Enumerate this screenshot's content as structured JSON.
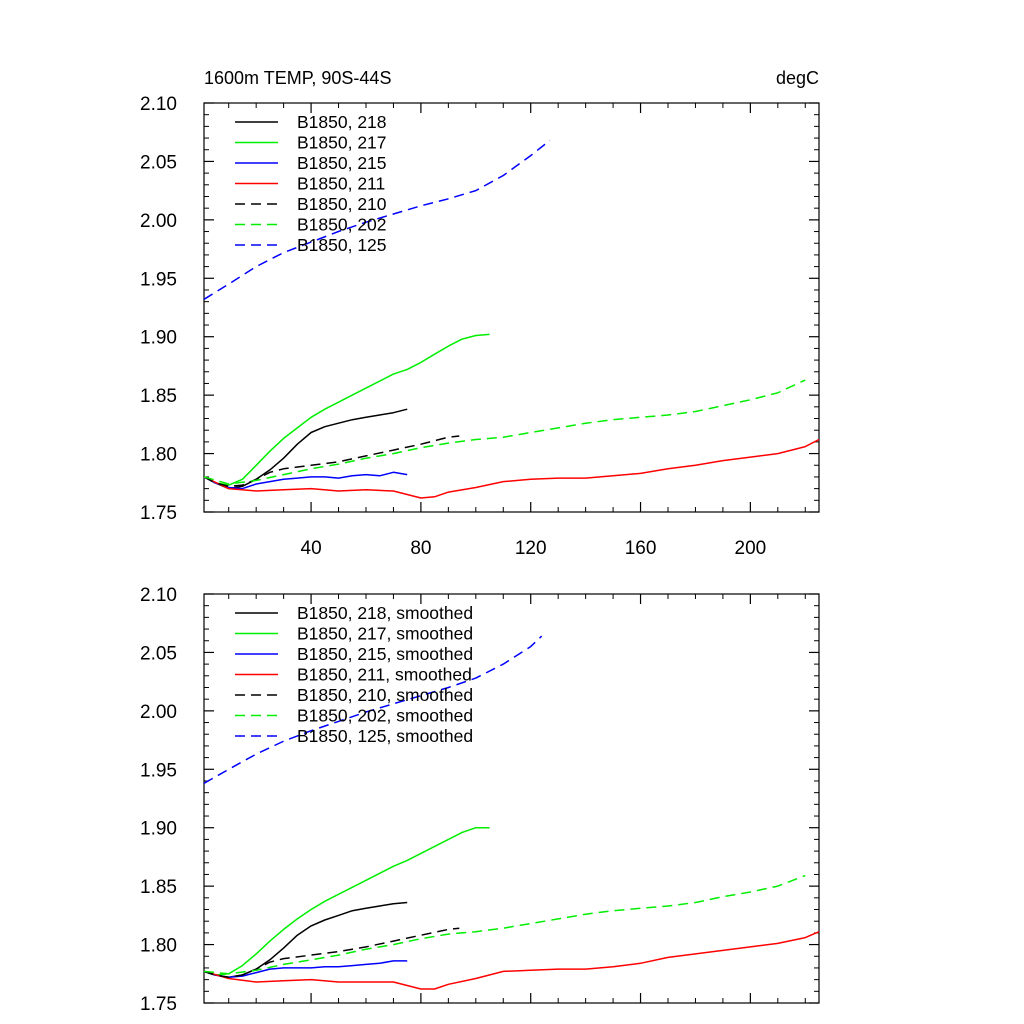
{
  "chart_data": [
    {
      "type": "line",
      "title_left": "1600m TEMP, 90S-44S",
      "title_right": "degC",
      "xlim": [
        1,
        225
      ],
      "ylim": [
        1.75,
        2.1
      ],
      "xticks": [
        40,
        80,
        120,
        160,
        200
      ],
      "yticks": [
        1.75,
        1.8,
        1.85,
        1.9,
        1.95,
        2.0,
        2.05,
        2.1
      ],
      "ytick_labels": [
        "1.75",
        "1.80",
        "1.85",
        "1.90",
        "1.95",
        "2.00",
        "2.05",
        "2.10"
      ],
      "xtick_labels": [
        "40",
        "80",
        "120",
        "160",
        "200"
      ],
      "legend_position": "top-left",
      "series": [
        {
          "name": "B1850, 218",
          "color": "#000000",
          "dash": "solid",
          "x": [
            1,
            5,
            10,
            15,
            20,
            25,
            30,
            35,
            40,
            45,
            50,
            55,
            60,
            65,
            70,
            75
          ],
          "y": [
            1.78,
            1.775,
            1.77,
            1.772,
            1.778,
            1.786,
            1.796,
            1.808,
            1.818,
            1.823,
            1.826,
            1.829,
            1.831,
            1.833,
            1.835,
            1.838
          ]
        },
        {
          "name": "B1850, 217",
          "color": "#00ee00",
          "dash": "solid",
          "x": [
            1,
            5,
            10,
            15,
            20,
            25,
            30,
            35,
            40,
            45,
            50,
            55,
            60,
            65,
            70,
            75,
            80,
            85,
            90,
            95,
            100,
            105
          ],
          "y": [
            1.78,
            1.775,
            1.773,
            1.778,
            1.79,
            1.802,
            1.813,
            1.822,
            1.831,
            1.838,
            1.844,
            1.85,
            1.856,
            1.862,
            1.868,
            1.872,
            1.878,
            1.885,
            1.892,
            1.898,
            1.901,
            1.902
          ]
        },
        {
          "name": "B1850, 215",
          "color": "#0000ff",
          "dash": "solid",
          "x": [
            1,
            5,
            10,
            15,
            20,
            25,
            30,
            35,
            40,
            45,
            50,
            55,
            60,
            65,
            70,
            75
          ],
          "y": [
            1.78,
            1.775,
            1.771,
            1.77,
            1.774,
            1.776,
            1.778,
            1.779,
            1.78,
            1.78,
            1.779,
            1.781,
            1.782,
            1.781,
            1.784,
            1.782
          ]
        },
        {
          "name": "B1850, 211",
          "color": "#ff0000",
          "dash": "solid",
          "x": [
            1,
            10,
            20,
            30,
            40,
            50,
            60,
            70,
            80,
            85,
            90,
            100,
            110,
            120,
            130,
            140,
            150,
            160,
            170,
            180,
            190,
            200,
            210,
            220,
            225
          ],
          "y": [
            1.78,
            1.77,
            1.768,
            1.769,
            1.77,
            1.768,
            1.769,
            1.768,
            1.762,
            1.763,
            1.767,
            1.771,
            1.776,
            1.778,
            1.779,
            1.779,
            1.781,
            1.783,
            1.787,
            1.79,
            1.794,
            1.797,
            1.8,
            1.806,
            1.812
          ]
        },
        {
          "name": "B1850, 210",
          "color": "#000000",
          "dash": "dashed",
          "x": [
            1,
            5,
            10,
            15,
            20,
            25,
            30,
            40,
            50,
            60,
            70,
            80,
            90,
            94
          ],
          "y": [
            1.78,
            1.775,
            1.772,
            1.773,
            1.778,
            1.784,
            1.787,
            1.79,
            1.793,
            1.798,
            1.803,
            1.808,
            1.814,
            1.815
          ]
        },
        {
          "name": "B1850, 202",
          "color": "#00ee00",
          "dash": "dashed",
          "x": [
            1,
            10,
            20,
            30,
            40,
            50,
            60,
            70,
            80,
            90,
            100,
            110,
            120,
            130,
            140,
            150,
            160,
            170,
            180,
            190,
            200,
            210,
            220
          ],
          "y": [
            1.78,
            1.774,
            1.777,
            1.782,
            1.787,
            1.791,
            1.796,
            1.8,
            1.805,
            1.809,
            1.812,
            1.814,
            1.818,
            1.822,
            1.826,
            1.829,
            1.831,
            1.833,
            1.836,
            1.841,
            1.846,
            1.852,
            1.863
          ]
        },
        {
          "name": "B1850, 125",
          "color": "#0000ff",
          "dash": "dashed",
          "x": [
            1,
            10,
            20,
            30,
            40,
            50,
            60,
            70,
            80,
            90,
            100,
            110,
            120,
            127
          ],
          "y": [
            1.932,
            1.945,
            1.96,
            1.972,
            1.981,
            1.99,
            1.998,
            2.005,
            2.012,
            2.018,
            2.025,
            2.038,
            2.055,
            2.068
          ]
        }
      ]
    },
    {
      "type": "line",
      "xlim": [
        1,
        225
      ],
      "ylim": [
        1.75,
        2.1
      ],
      "xticks": [
        40,
        80,
        120,
        160,
        200
      ],
      "yticks": [
        1.75,
        1.8,
        1.85,
        1.9,
        1.95,
        2.0,
        2.05,
        2.1
      ],
      "ytick_labels": [
        "1.75",
        "1.80",
        "1.85",
        "1.90",
        "1.95",
        "2.00",
        "2.05",
        "2.10"
      ],
      "legend_position": "top-left",
      "series": [
        {
          "name": "B1850, 218, smoothed",
          "color": "#000000",
          "dash": "solid",
          "x": [
            1,
            5,
            10,
            15,
            20,
            25,
            30,
            35,
            40,
            45,
            50,
            55,
            60,
            65,
            70,
            75
          ],
          "y": [
            1.777,
            1.774,
            1.772,
            1.774,
            1.779,
            1.787,
            1.797,
            1.808,
            1.816,
            1.821,
            1.825,
            1.829,
            1.831,
            1.833,
            1.835,
            1.836
          ]
        },
        {
          "name": "B1850, 217, smoothed",
          "color": "#00ee00",
          "dash": "solid",
          "x": [
            1,
            5,
            10,
            15,
            20,
            25,
            30,
            35,
            40,
            45,
            50,
            55,
            60,
            65,
            70,
            75,
            80,
            85,
            90,
            95,
            100,
            105
          ],
          "y": [
            1.777,
            1.774,
            1.775,
            1.782,
            1.792,
            1.803,
            1.813,
            1.822,
            1.83,
            1.837,
            1.843,
            1.849,
            1.855,
            1.861,
            1.867,
            1.872,
            1.878,
            1.884,
            1.89,
            1.896,
            1.9,
            1.9
          ]
        },
        {
          "name": "B1850, 215, smoothed",
          "color": "#0000ff",
          "dash": "solid",
          "x": [
            1,
            5,
            10,
            15,
            20,
            25,
            30,
            35,
            40,
            45,
            50,
            55,
            60,
            65,
            70,
            75
          ],
          "y": [
            1.777,
            1.774,
            1.772,
            1.773,
            1.776,
            1.779,
            1.78,
            1.78,
            1.78,
            1.781,
            1.781,
            1.782,
            1.783,
            1.784,
            1.786,
            1.786
          ]
        },
        {
          "name": "B1850, 211, smoothed",
          "color": "#ff0000",
          "dash": "solid",
          "x": [
            1,
            10,
            20,
            30,
            40,
            50,
            60,
            70,
            80,
            85,
            90,
            100,
            110,
            120,
            130,
            140,
            150,
            160,
            170,
            180,
            190,
            200,
            210,
            220,
            225
          ],
          "y": [
            1.777,
            1.771,
            1.768,
            1.769,
            1.77,
            1.768,
            1.768,
            1.768,
            1.762,
            1.762,
            1.766,
            1.771,
            1.777,
            1.778,
            1.779,
            1.779,
            1.781,
            1.784,
            1.789,
            1.792,
            1.795,
            1.798,
            1.801,
            1.806,
            1.811
          ]
        },
        {
          "name": "B1850, 210, smoothed",
          "color": "#000000",
          "dash": "dashed",
          "x": [
            1,
            5,
            10,
            15,
            20,
            25,
            30,
            40,
            50,
            60,
            70,
            80,
            90,
            94
          ],
          "y": [
            1.777,
            1.774,
            1.772,
            1.774,
            1.779,
            1.785,
            1.788,
            1.791,
            1.794,
            1.798,
            1.803,
            1.808,
            1.813,
            1.814
          ]
        },
        {
          "name": "B1850, 202, smoothed",
          "color": "#00ee00",
          "dash": "dashed",
          "x": [
            1,
            10,
            20,
            30,
            40,
            50,
            60,
            70,
            80,
            90,
            100,
            110,
            120,
            130,
            140,
            150,
            160,
            170,
            180,
            190,
            200,
            210,
            220
          ],
          "y": [
            1.777,
            1.775,
            1.778,
            1.783,
            1.787,
            1.791,
            1.796,
            1.8,
            1.805,
            1.809,
            1.811,
            1.814,
            1.818,
            1.822,
            1.826,
            1.829,
            1.831,
            1.833,
            1.836,
            1.841,
            1.845,
            1.85,
            1.859
          ]
        },
        {
          "name": "B1850, 125, smoothed",
          "color": "#0000ff",
          "dash": "dashed",
          "x": [
            1,
            10,
            20,
            30,
            40,
            50,
            60,
            70,
            80,
            90,
            100,
            110,
            120,
            124
          ],
          "y": [
            1.938,
            1.95,
            1.963,
            1.974,
            1.983,
            1.991,
            1.999,
            2.006,
            2.013,
            2.02,
            2.028,
            2.04,
            2.055,
            2.064
          ]
        }
      ]
    }
  ]
}
